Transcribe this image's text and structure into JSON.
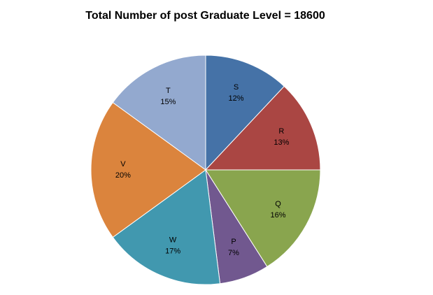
{
  "chart_data": {
    "type": "pie",
    "title": "Total Number of post Graduate Level = 18600",
    "slices": [
      {
        "label": "S",
        "value": 12,
        "value_label": "12%",
        "color": "#4572A7"
      },
      {
        "label": "R",
        "value": 13,
        "value_label": "13%",
        "color": "#AA4643"
      },
      {
        "label": "Q",
        "value": 16,
        "value_label": "16%",
        "color": "#89A54E"
      },
      {
        "label": "P",
        "value": 7,
        "value_label": "7%",
        "color": "#71588F"
      },
      {
        "label": "W",
        "value": 17,
        "value_label": "17%",
        "color": "#4198AF"
      },
      {
        "label": "V",
        "value": 20,
        "value_label": "20%",
        "color": "#DB843D"
      },
      {
        "label": "T",
        "value": 15,
        "value_label": "15%",
        "color": "#93A9CF"
      }
    ],
    "start_angle_deg": 0,
    "direction": "clockwise",
    "legend": "none"
  }
}
